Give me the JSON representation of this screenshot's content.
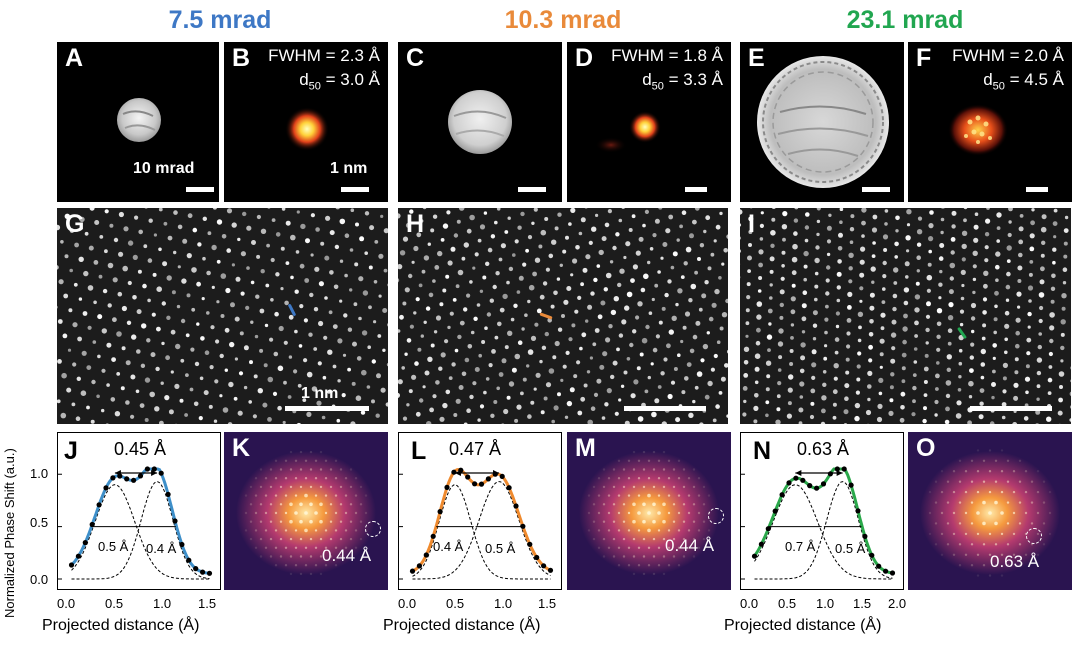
{
  "columns": [
    {
      "title": "7.5 mrad",
      "color": "#3e78c5"
    },
    {
      "title": "10.3 mrad",
      "color": "#e98a3a"
    },
    {
      "title": "23.1 mrad",
      "color": "#21a650"
    }
  ],
  "probe_panels": {
    "A": {
      "label": "A",
      "scalebar_text": "10 mrad"
    },
    "B": {
      "label": "B",
      "fwhm": "FWHM = 2.3 Å",
      "d50_prefix": "d",
      "d50_sub": "50",
      "d50_value": " = 3.0 Å",
      "scalebar_text": "1 nm"
    },
    "C": {
      "label": "C"
    },
    "D": {
      "label": "D",
      "fwhm": "FWHM = 1.8 Å",
      "d50_prefix": "d",
      "d50_sub": "50",
      "d50_value": " = 3.3 Å"
    },
    "E": {
      "label": "E"
    },
    "F": {
      "label": "F",
      "fwhm": "FWHM = 2.0 Å",
      "d50_prefix": "d",
      "d50_sub": "50",
      "d50_value": " = 4.5 Å"
    }
  },
  "image_panels": {
    "G": {
      "label": "G",
      "scalebar_text": "1 nm"
    },
    "H": {
      "label": "H"
    },
    "I": {
      "label": "I"
    }
  },
  "profile_plots": {
    "J": {
      "label": "J",
      "peak_sep": "0.45 Å",
      "left_width": "0.5 Å",
      "right_width": "0.4 Å",
      "xticks": [
        "0.0",
        "0.5",
        "1.0",
        "1.5"
      ],
      "xlim": [
        0,
        1.6
      ],
      "line_color": "#3e8fc9"
    },
    "L": {
      "label": "L",
      "peak_sep": "0.47 Å",
      "left_width": "0.4 Å",
      "right_width": "0.5 Å",
      "xticks": [
        "0.0",
        "0.5",
        "1.0",
        "1.5"
      ],
      "xlim": [
        0,
        1.6
      ],
      "line_color": "#ef8a2e"
    },
    "N": {
      "label": "N",
      "peak_sep": "0.63 Å",
      "left_width": "0.7 Å",
      "right_width": "0.5 Å",
      "xticks": [
        "0.0",
        "0.5",
        "1.0",
        "1.5",
        "2.0"
      ],
      "xlim": [
        0,
        2.0
      ],
      "line_color": "#2aa84a"
    }
  },
  "fft_panels": {
    "K": {
      "label": "K",
      "freq_label": "0.44 Å"
    },
    "M": {
      "label": "M",
      "freq_label": "0.44 Å"
    },
    "O": {
      "label": "O",
      "freq_label": "0.63 Å"
    }
  },
  "axes": {
    "ylabel": "Normalized Phase Shift (a.u.)",
    "xlabel": "Projected distance (Å)",
    "yticks": [
      "0.0",
      "0.5",
      "1.0"
    ]
  }
}
